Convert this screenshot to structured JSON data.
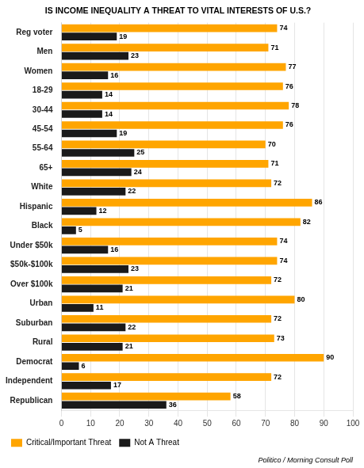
{
  "chart_data": {
    "type": "bar",
    "orientation": "horizontal",
    "title": "IS INCOME INEQUALITY A THREAT TO VITAL INTERESTS OF U.S.?",
    "categories": [
      "Reg voter",
      "Men",
      "Women",
      "18-29",
      "30-44",
      "45-54",
      "55-64",
      "65+",
      "White",
      "Hispanic",
      "Black",
      "Under $50k",
      "$50k-$100k",
      "Over $100k",
      "Urban",
      "Suburban",
      "Rural",
      "Democrat",
      "Independent",
      "Republican"
    ],
    "series": [
      {
        "name": "Critical/Important Threat",
        "color": "#FFA500",
        "values": [
          74,
          71,
          77,
          76,
          78,
          76,
          70,
          71,
          72,
          86,
          82,
          74,
          74,
          72,
          80,
          72,
          73,
          90,
          72,
          58
        ]
      },
      {
        "name": "Not A Threat",
        "color": "#1a1a1a",
        "values": [
          19,
          23,
          16,
          14,
          14,
          19,
          25,
          24,
          22,
          12,
          5,
          16,
          23,
          21,
          11,
          22,
          21,
          6,
          17,
          36
        ]
      }
    ],
    "xlim": [
      0,
      100
    ],
    "xticks": [
      0,
      10,
      20,
      30,
      40,
      50,
      60,
      70,
      80,
      90,
      100
    ],
    "grid": true,
    "legend": "bottom",
    "data_labels": true,
    "annotations": [
      "Politico / Morning Consult Poll"
    ]
  }
}
